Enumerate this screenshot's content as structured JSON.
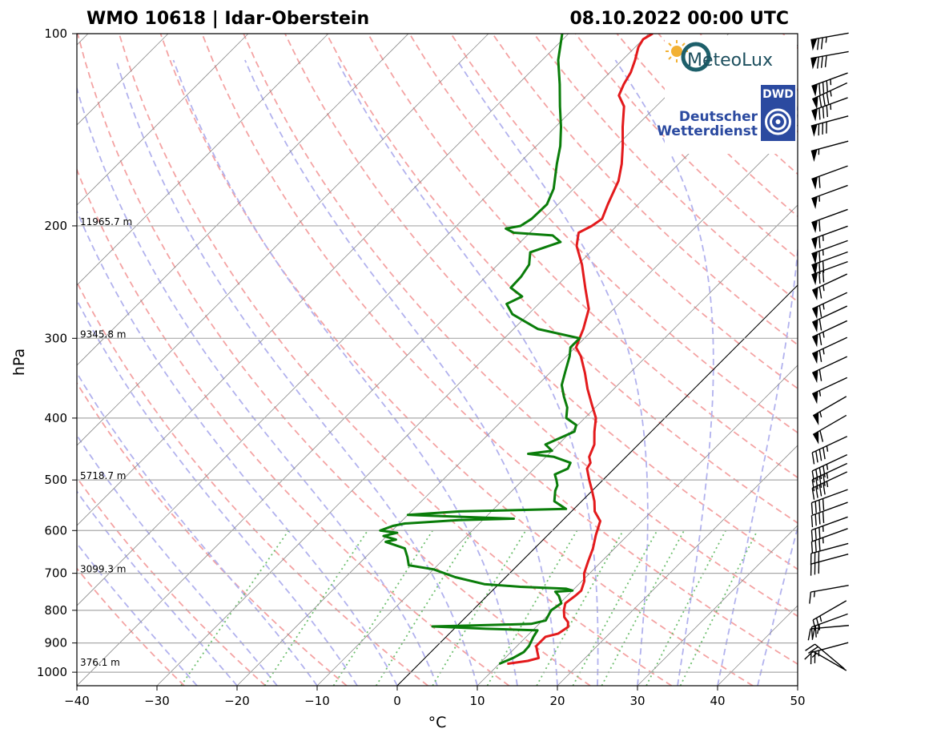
{
  "header": {
    "left_title": "WMO 10618 | Idar-Oberstein",
    "right_title": "08.10.2022 00:00 UTC"
  },
  "logos": {
    "meteolux": "MeteoLux",
    "dwd_badge": "DWD",
    "dwd_line1": "Deutscher",
    "dwd_line2": "Wetterdienst"
  },
  "colors": {
    "temperature": "#e31a1c",
    "dewpoint": "#0a7d0a",
    "dry_adiabat": "#f4a3a3",
    "moist_adiabat": "#b2b2ee",
    "mixing_ratio": "#6fbf6f",
    "isotherm": "#8c8c8c",
    "isobar": "#a9a9a9"
  },
  "chart_data": {
    "type": "skew-t log-p",
    "xlabel": "°C",
    "ylabel": "hPa",
    "xlim": [
      -40,
      50
    ],
    "ylim": [
      1000,
      100
    ],
    "x_ticks": [
      {
        "v": -40,
        "label": "−40"
      },
      {
        "v": -30,
        "label": "−30"
      },
      {
        "v": -20,
        "label": "−20"
      },
      {
        "v": -10,
        "label": "−10"
      },
      {
        "v": 0,
        "label": "0"
      },
      {
        "v": 10,
        "label": "10"
      },
      {
        "v": 20,
        "label": "20"
      },
      {
        "v": 30,
        "label": "30"
      },
      {
        "v": 40,
        "label": "40"
      },
      {
        "v": 50,
        "label": "50"
      }
    ],
    "y_ticks": [
      {
        "p": 100,
        "label": "100"
      },
      {
        "p": 200,
        "label": "200"
      },
      {
        "p": 300,
        "label": "300"
      },
      {
        "p": 400,
        "label": "400"
      },
      {
        "p": 500,
        "label": "500"
      },
      {
        "p": 600,
        "label": "600"
      },
      {
        "p": 700,
        "label": "700"
      },
      {
        "p": 800,
        "label": "800"
      },
      {
        "p": 900,
        "label": "900"
      },
      {
        "p": 1000,
        "label": "1000"
      }
    ],
    "height_labels": [
      {
        "p": 200,
        "label": "11965.7 m"
      },
      {
        "p": 300,
        "label": "9345.8 m"
      },
      {
        "p": 500,
        "label": "5718.7 m"
      },
      {
        "p": 700,
        "label": "3099.3 m"
      },
      {
        "p": 1000,
        "label": "376.1 m"
      }
    ],
    "series": [
      {
        "kind": "temperature",
        "points": [
          [
            970,
            11.0
          ],
          [
            960,
            13.2
          ],
          [
            950,
            14.2
          ],
          [
            930,
            13.3
          ],
          [
            910,
            12.4
          ],
          [
            880,
            12.4
          ],
          [
            870,
            13.6
          ],
          [
            850,
            14.0
          ],
          [
            835,
            13.4
          ],
          [
            820,
            12.3
          ],
          [
            800,
            11.4
          ],
          [
            780,
            10.7
          ],
          [
            760,
            11.0
          ],
          [
            745,
            11.1
          ],
          [
            720,
            10.3
          ],
          [
            700,
            9.3
          ],
          [
            670,
            8.3
          ],
          [
            640,
            7.3
          ],
          [
            610,
            6.0
          ],
          [
            580,
            4.8
          ],
          [
            560,
            2.9
          ],
          [
            540,
            1.6
          ],
          [
            520,
            0.0
          ],
          [
            500,
            -1.7
          ],
          [
            480,
            -3.4
          ],
          [
            470,
            -3.7
          ],
          [
            460,
            -4.6
          ],
          [
            440,
            -5.5
          ],
          [
            420,
            -7.1
          ],
          [
            400,
            -8.6
          ],
          [
            380,
            -10.9
          ],
          [
            360,
            -13.3
          ],
          [
            340,
            -15.6
          ],
          [
            320,
            -18.2
          ],
          [
            310,
            -19.9
          ],
          [
            300,
            -20.6
          ],
          [
            290,
            -21.3
          ],
          [
            270,
            -23.1
          ],
          [
            250,
            -26.2
          ],
          [
            230,
            -29.5
          ],
          [
            215,
            -32.5
          ],
          [
            205,
            -33.9
          ],
          [
            200,
            -33.1
          ],
          [
            195,
            -32.7
          ],
          [
            185,
            -33.8
          ],
          [
            170,
            -35.4
          ],
          [
            160,
            -37.1
          ],
          [
            150,
            -39.2
          ],
          [
            140,
            -41.6
          ],
          [
            130,
            -44.0
          ],
          [
            125,
            -46.0
          ],
          [
            120,
            -46.8
          ],
          [
            115,
            -47.4
          ],
          [
            110,
            -48.4
          ],
          [
            105,
            -49.6
          ],
          [
            102,
            -50.0
          ],
          [
            100,
            -49.5
          ]
        ]
      },
      {
        "kind": "dewpoint",
        "points": [
          [
            970,
            10.0
          ],
          [
            950,
            11.0
          ],
          [
            930,
            11.6
          ],
          [
            910,
            11.5
          ],
          [
            880,
            10.9
          ],
          [
            860,
            10.6
          ],
          [
            855,
            4.0
          ],
          [
            848,
            -3.0
          ],
          [
            845,
            2.0
          ],
          [
            840,
            9.0
          ],
          [
            830,
            10.4
          ],
          [
            800,
            9.8
          ],
          [
            780,
            10.2
          ],
          [
            760,
            9.0
          ],
          [
            748,
            8.0
          ],
          [
            745,
            10.0
          ],
          [
            740,
            9.0
          ],
          [
            735,
            3.0
          ],
          [
            728,
            -1.8
          ],
          [
            710,
            -6.3
          ],
          [
            690,
            -10.0
          ],
          [
            680,
            -13.6
          ],
          [
            660,
            -14.8
          ],
          [
            640,
            -16.2
          ],
          [
            625,
            -19.4
          ],
          [
            620,
            -18.4
          ],
          [
            612,
            -20.4
          ],
          [
            605,
            -19.1
          ],
          [
            600,
            -21.5
          ],
          [
            590,
            -20.5
          ],
          [
            585,
            -19.3
          ],
          [
            578,
            -13.0
          ],
          [
            575,
            -6.3
          ],
          [
            570,
            -15.0
          ],
          [
            567,
            -20.0
          ],
          [
            560,
            -14.0
          ],
          [
            555,
            -1.0
          ],
          [
            540,
            -3.4
          ],
          [
            520,
            -4.6
          ],
          [
            510,
            -5.0
          ],
          [
            500,
            -5.8
          ],
          [
            490,
            -6.7
          ],
          [
            480,
            -5.8
          ],
          [
            470,
            -6.2
          ],
          [
            460,
            -9.0
          ],
          [
            455,
            -12.6
          ],
          [
            450,
            -10.0
          ],
          [
            440,
            -11.6
          ],
          [
            420,
            -9.6
          ],
          [
            410,
            -10.2
          ],
          [
            400,
            -12.3
          ],
          [
            385,
            -13.5
          ],
          [
            370,
            -15.3
          ],
          [
            355,
            -17.0
          ],
          [
            340,
            -18.1
          ],
          [
            320,
            -19.6
          ],
          [
            310,
            -20.6
          ],
          [
            300,
            -20.6
          ],
          [
            290,
            -27.0
          ],
          [
            275,
            -32.0
          ],
          [
            265,
            -34.0
          ],
          [
            258,
            -33.0
          ],
          [
            250,
            -35.5
          ],
          [
            240,
            -35.6
          ],
          [
            230,
            -36.1
          ],
          [
            220,
            -37.5
          ],
          [
            212,
            -35.0
          ],
          [
            207,
            -36.8
          ],
          [
            205,
            -42.0
          ],
          [
            202,
            -43.5
          ],
          [
            200,
            -42.0
          ],
          [
            195,
            -41.5
          ],
          [
            185,
            -41.4
          ],
          [
            175,
            -42.5
          ],
          [
            160,
            -45.2
          ],
          [
            150,
            -47.0
          ],
          [
            140,
            -49.3
          ],
          [
            130,
            -52.0
          ],
          [
            120,
            -54.8
          ],
          [
            110,
            -58.0
          ],
          [
            100,
            -60.8
          ]
        ]
      }
    ],
    "wind_barbs": [
      {
        "p": 101,
        "dir": 260,
        "kt": 75
      },
      {
        "p": 108,
        "dir": 260,
        "kt": 80
      },
      {
        "p": 118,
        "dir": 250,
        "kt": 85
      },
      {
        "p": 123,
        "dir": 245,
        "kt": 85
      },
      {
        "p": 129,
        "dir": 250,
        "kt": 85
      },
      {
        "p": 137,
        "dir": 255,
        "kt": 80
      },
      {
        "p": 150,
        "dir": 255,
        "kt": 55
      },
      {
        "p": 165,
        "dir": 250,
        "kt": 60
      },
      {
        "p": 177,
        "dir": 250,
        "kt": 55
      },
      {
        "p": 193,
        "dir": 250,
        "kt": 60
      },
      {
        "p": 205,
        "dir": 250,
        "kt": 65
      },
      {
        "p": 216,
        "dir": 250,
        "kt": 65
      },
      {
        "p": 225,
        "dir": 250,
        "kt": 70
      },
      {
        "p": 233,
        "dir": 250,
        "kt": 70
      },
      {
        "p": 245,
        "dir": 245,
        "kt": 65
      },
      {
        "p": 262,
        "dir": 245,
        "kt": 65
      },
      {
        "p": 275,
        "dir": 245,
        "kt": 60
      },
      {
        "p": 290,
        "dir": 245,
        "kt": 65
      },
      {
        "p": 308,
        "dir": 245,
        "kt": 65
      },
      {
        "p": 330,
        "dir": 245,
        "kt": 60
      },
      {
        "p": 356,
        "dir": 245,
        "kt": 55
      },
      {
        "p": 383,
        "dir": 240,
        "kt": 55
      },
      {
        "p": 410,
        "dir": 240,
        "kt": 60
      },
      {
        "p": 440,
        "dir": 245,
        "kt": 45
      },
      {
        "p": 470,
        "dir": 245,
        "kt": 45
      },
      {
        "p": 485,
        "dir": 245,
        "kt": 45
      },
      {
        "p": 500,
        "dir": 245,
        "kt": 45
      },
      {
        "p": 530,
        "dir": 250,
        "kt": 40
      },
      {
        "p": 555,
        "dir": 250,
        "kt": 40
      },
      {
        "p": 585,
        "dir": 250,
        "kt": 35
      },
      {
        "p": 610,
        "dir": 250,
        "kt": 35
      },
      {
        "p": 640,
        "dir": 255,
        "kt": 30
      },
      {
        "p": 665,
        "dir": 255,
        "kt": 30
      },
      {
        "p": 740,
        "dir": 260,
        "kt": 15
      },
      {
        "p": 800,
        "dir": 240,
        "kt": 25
      },
      {
        "p": 830,
        "dir": 250,
        "kt": 25
      },
      {
        "p": 850,
        "dir": 265,
        "kt": 25
      },
      {
        "p": 915,
        "dir": 255,
        "kt": 25
      },
      {
        "p": 945,
        "dir": 310,
        "kt": 20
      },
      {
        "p": 960,
        "dir": 300,
        "kt": 15
      }
    ]
  }
}
